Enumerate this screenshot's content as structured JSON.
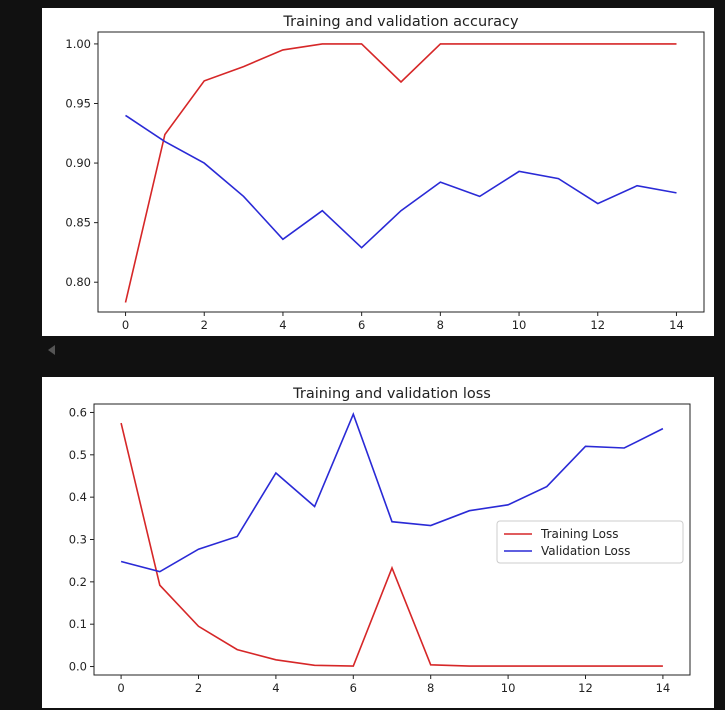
{
  "colors": {
    "training": "#d62728",
    "validation": "#2a2ad6"
  },
  "chart_data": [
    {
      "type": "line",
      "title": "Training and validation accuracy",
      "x": [
        0,
        1,
        2,
        3,
        4,
        5,
        6,
        7,
        8,
        9,
        10,
        11,
        12,
        13,
        14
      ],
      "xlim": [
        -0.7,
        14.7
      ],
      "ylim": [
        0.775,
        1.01
      ],
      "xticks": [
        0,
        2,
        4,
        6,
        8,
        10,
        12,
        14
      ],
      "yticks": [
        0.8,
        0.85,
        0.9,
        0.95,
        1.0
      ],
      "ytick_labels": [
        "0.80",
        "0.85",
        "0.90",
        "0.95",
        "1.00"
      ],
      "legend": null,
      "series": [
        {
          "values": [
            0.783,
            0.924,
            0.969,
            0.981,
            0.995,
            1.0,
            1.0,
            0.968,
            1.0,
            1.0,
            1.0,
            1.0,
            1.0,
            1.0,
            1.0
          ],
          "color": "training"
        },
        {
          "values": [
            0.94,
            0.918,
            0.9,
            0.872,
            0.836,
            0.86,
            0.829,
            0.86,
            0.884,
            0.872,
            0.893,
            0.887,
            0.866,
            0.881,
            0.875
          ],
          "color": "validation"
        }
      ]
    },
    {
      "type": "line",
      "title": "Training and validation loss",
      "x": [
        0,
        1,
        2,
        3,
        4,
        5,
        6,
        7,
        8,
        9,
        10,
        11,
        12,
        13,
        14
      ],
      "xlim": [
        -0.7,
        14.7
      ],
      "ylim": [
        -0.02,
        0.62
      ],
      "xticks": [
        0,
        2,
        4,
        6,
        8,
        10,
        12,
        14
      ],
      "yticks": [
        0.0,
        0.1,
        0.2,
        0.3,
        0.4,
        0.5,
        0.6
      ],
      "ytick_labels": [
        "0.0",
        "0.1",
        "0.2",
        "0.3",
        "0.4",
        "0.5",
        "0.6"
      ],
      "legend": "center-right",
      "series": [
        {
          "name": "Training Loss",
          "values": [
            0.575,
            0.192,
            0.095,
            0.04,
            0.016,
            0.003,
            0.001,
            0.233,
            0.004,
            0.001,
            0.001,
            0.001,
            0.001,
            0.001,
            0.001
          ],
          "color": "training"
        },
        {
          "name": "Validation Loss",
          "values": [
            0.248,
            0.224,
            0.277,
            0.307,
            0.457,
            0.378,
            0.596,
            0.342,
            0.333,
            0.368,
            0.382,
            0.425,
            0.52,
            0.516,
            0.562
          ],
          "color": "validation"
        }
      ]
    }
  ]
}
